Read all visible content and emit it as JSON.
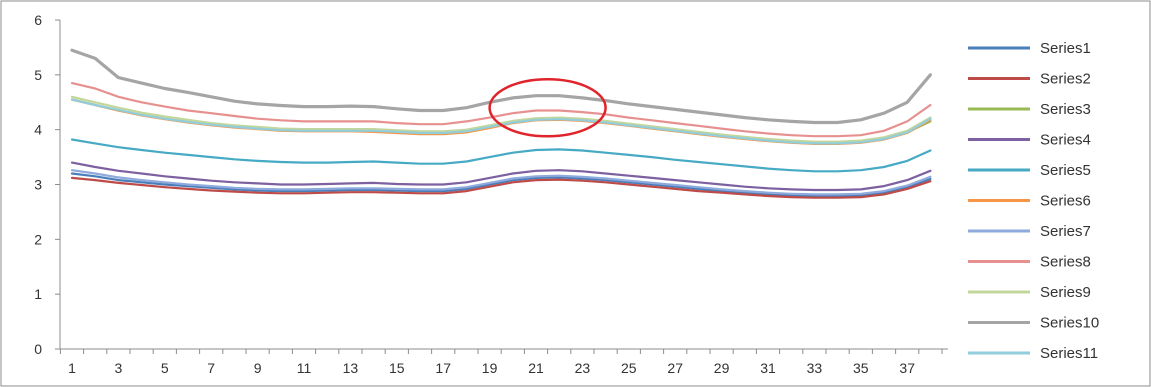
{
  "chart_data": {
    "type": "line",
    "x": [
      1,
      2,
      3,
      4,
      5,
      6,
      7,
      8,
      9,
      10,
      11,
      12,
      13,
      14,
      15,
      16,
      17,
      18,
      19,
      20,
      21,
      22,
      23,
      24,
      25,
      26,
      27,
      28,
      29,
      30,
      31,
      32,
      33,
      34,
      35,
      36,
      37,
      38
    ],
    "x_tick_labels": [
      "1",
      "3",
      "5",
      "7",
      "9",
      "11",
      "13",
      "15",
      "17",
      "19",
      "21",
      "23",
      "25",
      "27",
      "29",
      "31",
      "33",
      "35",
      "37"
    ],
    "y_tick_labels": [
      "0",
      "1",
      "2",
      "3",
      "4",
      "5",
      "6"
    ],
    "ylim": [
      0,
      6
    ],
    "grid": false,
    "legend_position": "right",
    "series": [
      {
        "name": "Series1",
        "color": "#4a7ebb",
        "values": [
          3.2,
          3.15,
          3.08,
          3.04,
          3.0,
          2.97,
          2.94,
          2.91,
          2.89,
          2.88,
          2.88,
          2.89,
          2.9,
          2.9,
          2.89,
          2.88,
          2.88,
          2.92,
          3.0,
          3.08,
          3.12,
          3.13,
          3.11,
          3.08,
          3.04,
          3.0,
          2.96,
          2.92,
          2.88,
          2.85,
          2.82,
          2.8,
          2.79,
          2.79,
          2.8,
          2.85,
          2.95,
          3.1
        ]
      },
      {
        "name": "Series2",
        "color": "#be4b48",
        "values": [
          3.12,
          3.08,
          3.03,
          2.99,
          2.95,
          2.92,
          2.89,
          2.87,
          2.85,
          2.84,
          2.84,
          2.85,
          2.86,
          2.86,
          2.85,
          2.84,
          2.84,
          2.88,
          2.96,
          3.04,
          3.08,
          3.09,
          3.07,
          3.04,
          3.0,
          2.96,
          2.92,
          2.88,
          2.85,
          2.82,
          2.79,
          2.77,
          2.76,
          2.76,
          2.77,
          2.82,
          2.92,
          3.06
        ]
      },
      {
        "name": "Series3",
        "color": "#98b954",
        "values": [
          4.55,
          4.45,
          4.35,
          4.27,
          4.2,
          4.14,
          4.09,
          4.05,
          4.02,
          4.0,
          3.99,
          3.99,
          3.99,
          3.99,
          3.97,
          3.95,
          3.95,
          3.98,
          4.05,
          4.13,
          4.18,
          4.19,
          4.17,
          4.13,
          4.08,
          4.03,
          3.98,
          3.93,
          3.88,
          3.84,
          3.8,
          3.77,
          3.75,
          3.75,
          3.77,
          3.83,
          3.95,
          4.15
        ]
      },
      {
        "name": "Series4",
        "color": "#7d60a0",
        "values": [
          3.4,
          3.32,
          3.25,
          3.2,
          3.15,
          3.11,
          3.07,
          3.04,
          3.02,
          3.0,
          3.0,
          3.01,
          3.02,
          3.03,
          3.01,
          3.0,
          3.0,
          3.04,
          3.12,
          3.2,
          3.25,
          3.26,
          3.24,
          3.2,
          3.16,
          3.12,
          3.08,
          3.04,
          3.0,
          2.96,
          2.93,
          2.91,
          2.9,
          2.9,
          2.91,
          2.97,
          3.08,
          3.25
        ]
      },
      {
        "name": "Series5",
        "color": "#46aac5",
        "values": [
          3.82,
          3.75,
          3.68,
          3.63,
          3.58,
          3.54,
          3.5,
          3.46,
          3.43,
          3.41,
          3.4,
          3.4,
          3.41,
          3.42,
          3.4,
          3.38,
          3.38,
          3.42,
          3.5,
          3.58,
          3.63,
          3.64,
          3.62,
          3.58,
          3.54,
          3.5,
          3.45,
          3.41,
          3.37,
          3.33,
          3.29,
          3.26,
          3.24,
          3.24,
          3.26,
          3.32,
          3.43,
          3.62
        ]
      },
      {
        "name": "Series6",
        "color": "#f79646",
        "values": [
          4.55,
          4.45,
          4.35,
          4.26,
          4.19,
          4.13,
          4.08,
          4.04,
          4.01,
          3.98,
          3.97,
          3.97,
          3.97,
          3.96,
          3.94,
          3.92,
          3.92,
          3.95,
          4.03,
          4.12,
          4.17,
          4.18,
          4.16,
          4.12,
          4.07,
          4.02,
          3.97,
          3.92,
          3.87,
          3.83,
          3.79,
          3.76,
          3.74,
          3.74,
          3.76,
          3.82,
          3.94,
          4.18
        ]
      },
      {
        "name": "Series7",
        "color": "#8ea9db",
        "values": [
          3.26,
          3.2,
          3.13,
          3.08,
          3.04,
          3.0,
          2.97,
          2.94,
          2.92,
          2.91,
          2.91,
          2.92,
          2.93,
          2.93,
          2.92,
          2.91,
          2.91,
          2.95,
          3.03,
          3.11,
          3.15,
          3.16,
          3.14,
          3.11,
          3.07,
          3.03,
          2.99,
          2.95,
          2.91,
          2.88,
          2.85,
          2.83,
          2.82,
          2.82,
          2.83,
          2.88,
          2.98,
          3.14
        ]
      },
      {
        "name": "Series8",
        "color": "#e6908f",
        "values": [
          4.85,
          4.75,
          4.6,
          4.5,
          4.42,
          4.35,
          4.3,
          4.25,
          4.2,
          4.17,
          4.15,
          4.15,
          4.15,
          4.15,
          4.12,
          4.1,
          4.1,
          4.15,
          4.22,
          4.3,
          4.35,
          4.35,
          4.32,
          4.28,
          4.22,
          4.17,
          4.12,
          4.07,
          4.02,
          3.97,
          3.93,
          3.9,
          3.88,
          3.88,
          3.9,
          3.98,
          4.15,
          4.45
        ]
      },
      {
        "name": "Series9",
        "color": "#c4d79b",
        "values": [
          4.6,
          4.5,
          4.4,
          4.31,
          4.24,
          4.18,
          4.12,
          4.08,
          4.05,
          4.02,
          4.01,
          4.01,
          4.01,
          4.01,
          3.99,
          3.97,
          3.97,
          4.0,
          4.08,
          4.16,
          4.21,
          4.22,
          4.2,
          4.16,
          4.11,
          4.06,
          4.01,
          3.96,
          3.91,
          3.87,
          3.83,
          3.8,
          3.78,
          3.78,
          3.8,
          3.86,
          3.98,
          4.22
        ]
      },
      {
        "name": "Series10",
        "color": "#a5a5a5",
        "values": [
          5.45,
          5.3,
          4.95,
          4.85,
          4.75,
          4.68,
          4.6,
          4.52,
          4.47,
          4.44,
          4.42,
          4.42,
          4.43,
          4.42,
          4.38,
          4.35,
          4.35,
          4.4,
          4.5,
          4.58,
          4.62,
          4.62,
          4.58,
          4.53,
          4.47,
          4.42,
          4.37,
          4.32,
          4.27,
          4.22,
          4.18,
          4.15,
          4.13,
          4.13,
          4.18,
          4.3,
          4.5,
          5.0
        ]
      },
      {
        "name": "Series11",
        "color": "#92cddc",
        "values": [
          4.55,
          4.45,
          4.36,
          4.27,
          4.2,
          4.14,
          4.09,
          4.05,
          4.02,
          3.99,
          3.98,
          3.98,
          3.98,
          3.98,
          3.96,
          3.94,
          3.94,
          3.97,
          4.05,
          4.13,
          4.18,
          4.19,
          4.17,
          4.13,
          4.08,
          4.03,
          3.98,
          3.93,
          3.88,
          3.84,
          3.8,
          3.77,
          3.75,
          3.75,
          3.77,
          3.83,
          3.95,
          4.2
        ]
      }
    ],
    "annotations": [
      {
        "type": "ellipse",
        "color": "#e0242b",
        "cx": 21.5,
        "cy": 4.4,
        "rx": 2.5,
        "ry": 0.52
      }
    ]
  }
}
